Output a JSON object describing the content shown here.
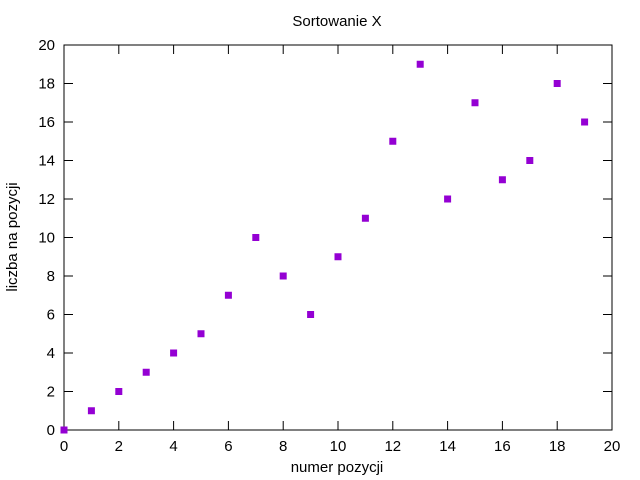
{
  "chart_data": {
    "type": "scatter",
    "title": "Sortowanie X",
    "xlabel": "numer pozycji",
    "ylabel": "liczba na pozycji",
    "xlim": [
      0,
      20
    ],
    "ylim": [
      0,
      20
    ],
    "xticks": [
      0,
      2,
      4,
      6,
      8,
      10,
      12,
      14,
      16,
      18,
      20
    ],
    "yticks": [
      0,
      2,
      4,
      6,
      8,
      10,
      12,
      14,
      16,
      18,
      20
    ],
    "grid": false,
    "legend": "none",
    "marker": "square",
    "color": "#9400d3",
    "points": [
      {
        "x": 0,
        "y": 0
      },
      {
        "x": 1,
        "y": 1
      },
      {
        "x": 2,
        "y": 2
      },
      {
        "x": 3,
        "y": 3
      },
      {
        "x": 4,
        "y": 4
      },
      {
        "x": 5,
        "y": 5
      },
      {
        "x": 6,
        "y": 7
      },
      {
        "x": 7,
        "y": 10
      },
      {
        "x": 8,
        "y": 8
      },
      {
        "x": 9,
        "y": 6
      },
      {
        "x": 10,
        "y": 9
      },
      {
        "x": 11,
        "y": 11
      },
      {
        "x": 12,
        "y": 15
      },
      {
        "x": 13,
        "y": 19
      },
      {
        "x": 14,
        "y": 12
      },
      {
        "x": 15,
        "y": 17
      },
      {
        "x": 16,
        "y": 13
      },
      {
        "x": 17,
        "y": 14
      },
      {
        "x": 18,
        "y": 18
      },
      {
        "x": 19,
        "y": 16
      }
    ]
  }
}
